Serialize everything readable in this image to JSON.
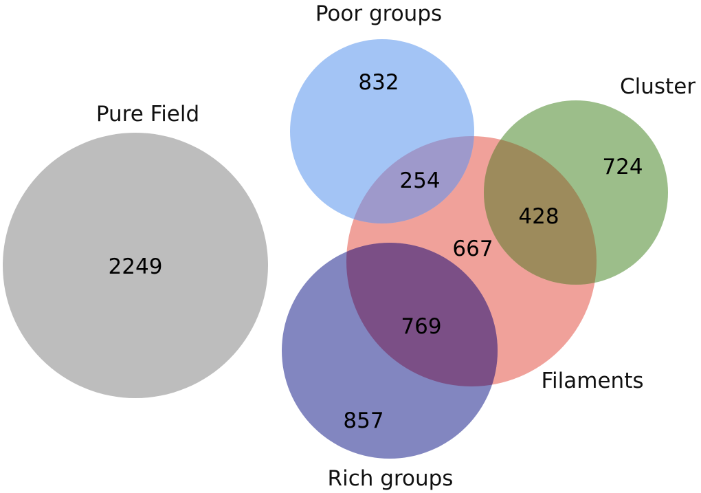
{
  "sets": {
    "pure_field": {
      "label": "Pure Field",
      "color": "#bdbdbd"
    },
    "poor_groups": {
      "label": "Poor groups",
      "color": "#a3c4f5"
    },
    "cluster": {
      "label": "Cluster",
      "color": "#9cbe8a"
    },
    "filaments": {
      "label": "Filaments",
      "color": "#f0a19a"
    },
    "rich_groups": {
      "label": "Rich groups",
      "color": "#8286c0"
    }
  },
  "overlap_colors": {
    "poor_filaments": "#9e99cb",
    "cluster_filaments": "#9d8b5c",
    "rich_filaments": "#7b4f86"
  },
  "counts": {
    "pure_field_only": "2249",
    "poor_only": "832",
    "poor_and_filaments": "254",
    "cluster_only": "724",
    "cluster_and_filaments": "428",
    "filaments_only": "667",
    "rich_and_filaments": "769",
    "rich_only": "857"
  }
}
